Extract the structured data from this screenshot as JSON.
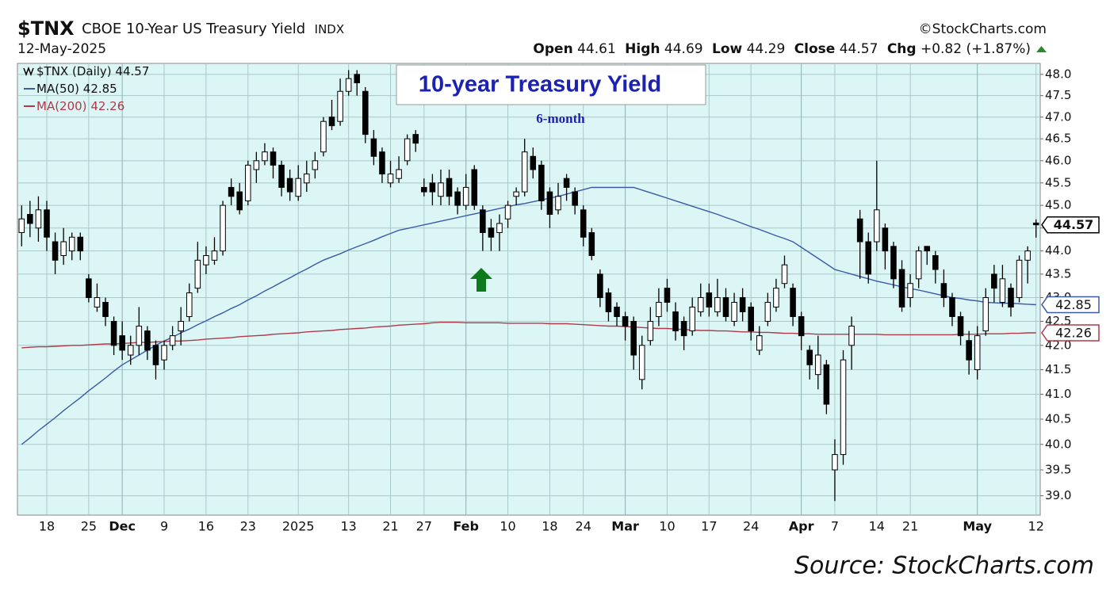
{
  "chart_data": {
    "type": "candlestick",
    "header": {
      "symbol": "$TNX",
      "name": "CBOE 10-Year US Treasury Yield",
      "exchange": "INDX",
      "date": "12-May-2025",
      "copyright": "©StockCharts.com",
      "open_label": "Open",
      "high_label": "High",
      "low_label": "Low",
      "close_label": "Close",
      "chg_label": "Chg",
      "change": "+0.82",
      "change_pct": "(+1.87%)"
    },
    "title": "10-year Treasury Yield",
    "subtitle": "6-month",
    "source": "Source: StockCharts.com",
    "log": true,
    "grid": true,
    "legend": "top-left",
    "ylim": [
      38.63,
      48.26
    ],
    "yticks": [
      {
        "value": 39.0,
        "label": "39.0"
      },
      39.5,
      {
        "value": 40.0,
        "label": "40.0"
      },
      40.5,
      {
        "value": 41.0,
        "label": "41.0"
      },
      41.5,
      {
        "value": 42.0,
        "label": "42.0"
      },
      42.5,
      {
        "value": 43.0,
        "label": "43.0"
      },
      43.5,
      {
        "value": 44.0,
        "label": "44.0"
      },
      44.5,
      {
        "value": 45.0,
        "label": "45.0"
      },
      45.5,
      {
        "value": 46.0,
        "label": "46.0"
      },
      46.5,
      {
        "value": 47.0,
        "label": "47.0"
      },
      47.5,
      {
        "value": 48.0,
        "label": "48.0"
      }
    ],
    "categories": [
      null,
      null,
      null,
      "18",
      null,
      null,
      null,
      null,
      "25",
      null,
      null,
      null,
      "Dec",
      null,
      null,
      null,
      null,
      "9",
      null,
      null,
      null,
      null,
      "16",
      null,
      null,
      null,
      null,
      "23",
      null,
      null,
      null,
      null,
      null,
      "2025",
      null,
      null,
      null,
      null,
      null,
      "13",
      null,
      null,
      null,
      null,
      "21",
      null,
      null,
      null,
      "27",
      null,
      null,
      null,
      null,
      "Feb",
      null,
      null,
      null,
      null,
      "10",
      null,
      null,
      null,
      null,
      "18",
      null,
      null,
      null,
      "24",
      null,
      null,
      null,
      null,
      "Mar",
      null,
      null,
      null,
      null,
      "10",
      null,
      null,
      null,
      null,
      "17",
      null,
      null,
      null,
      null,
      "24",
      null,
      null,
      null,
      null,
      null,
      "Apr",
      null,
      null,
      null,
      "7",
      null,
      null,
      null,
      null,
      "14",
      null,
      null,
      null,
      "21",
      null,
      null,
      null,
      null,
      null,
      null,
      null,
      "May",
      null,
      null,
      null,
      null,
      null,
      null,
      "12"
    ],
    "series": [
      {
        "name": "$TNX (Daily)",
        "color": "#000000",
        "open": [
          44.4,
          44.8,
          44.5,
          44.9,
          44.2,
          43.9,
          44.0,
          44.3,
          43.4,
          42.8,
          42.9,
          42.5,
          42.2,
          41.8,
          42.0,
          42.3,
          42.0,
          41.7,
          42.0,
          42.3,
          42.6,
          43.2,
          43.7,
          43.8,
          44.0,
          45.4,
          45.3,
          45.1,
          45.8,
          46.0,
          46.2,
          45.9,
          45.6,
          45.2,
          45.5,
          45.8,
          46.2,
          47.0,
          46.9,
          47.6,
          48.0,
          47.6,
          46.5,
          46.2,
          45.5,
          45.6,
          46.0,
          46.6,
          45.4,
          45.5,
          45.2,
          45.6,
          45.3,
          45.0,
          45.8,
          44.9,
          44.5,
          44.4,
          44.7,
          45.2,
          45.3,
          46.1,
          45.9,
          45.3,
          44.9,
          45.6,
          45.3,
          44.9,
          44.4,
          43.5,
          43.1,
          42.8,
          42.6,
          42.5,
          41.3,
          42.1,
          42.6,
          43.2,
          42.7,
          42.5,
          42.3,
          42.7,
          43.1,
          42.7,
          43.0,
          42.5,
          43.0,
          42.8,
          41.9,
          42.5,
          42.8,
          43.3,
          43.2,
          42.6,
          41.9,
          41.4,
          41.6,
          39.5,
          39.8,
          42.0,
          44.7,
          44.2,
          44.2,
          44.5,
          44.1,
          43.6,
          43.0,
          43.4,
          44.1,
          43.9,
          43.3,
          43.0,
          42.6,
          42.1,
          41.5,
          42.3,
          43.5,
          42.9,
          43.2,
          43.0,
          43.8,
          44.61
        ],
        "high": [
          45.0,
          45.1,
          45.2,
          45.1,
          44.4,
          44.5,
          44.4,
          44.4,
          43.5,
          43.3,
          43.0,
          42.6,
          42.5,
          42.2,
          42.8,
          42.4,
          42.1,
          42.1,
          42.4,
          42.8,
          43.3,
          44.2,
          44.1,
          44.3,
          45.1,
          45.6,
          45.5,
          46.0,
          46.2,
          46.4,
          46.3,
          46.0,
          45.8,
          45.9,
          46.0,
          46.2,
          47.0,
          47.4,
          47.9,
          48.1,
          48.1,
          47.7,
          46.7,
          46.3,
          46.0,
          46.1,
          46.6,
          46.7,
          45.6,
          45.7,
          45.8,
          45.8,
          45.4,
          45.7,
          45.9,
          45.0,
          44.7,
          44.8,
          45.1,
          45.4,
          46.5,
          46.3,
          46.0,
          45.4,
          45.5,
          45.7,
          45.4,
          45.0,
          44.5,
          43.6,
          43.2,
          42.9,
          42.7,
          42.6,
          42.2,
          42.8,
          43.2,
          43.4,
          42.9,
          42.6,
          43.0,
          43.3,
          43.3,
          43.4,
          43.2,
          43.1,
          43.2,
          42.9,
          42.4,
          43.1,
          43.4,
          43.9,
          43.3,
          42.7,
          42.0,
          42.2,
          41.7,
          40.1,
          41.9,
          42.6,
          44.9,
          44.4,
          46.0,
          44.6,
          44.2,
          43.8,
          43.5,
          44.1,
          44.1,
          44.0,
          43.6,
          43.1,
          42.7,
          42.3,
          42.4,
          43.2,
          43.7,
          43.7,
          43.3,
          43.9,
          44.1,
          44.69
        ],
        "low": [
          44.1,
          44.3,
          44.2,
          44.0,
          43.5,
          43.7,
          43.8,
          43.8,
          42.9,
          42.7,
          42.4,
          41.8,
          41.7,
          41.6,
          41.8,
          41.7,
          41.3,
          41.5,
          41.9,
          42.0,
          42.5,
          43.1,
          43.5,
          43.7,
          43.9,
          45.0,
          44.8,
          45.0,
          45.5,
          45.9,
          45.6,
          45.2,
          45.1,
          45.1,
          45.3,
          45.6,
          46.1,
          46.7,
          46.8,
          47.5,
          47.5,
          46.4,
          45.9,
          45.5,
          45.4,
          45.5,
          45.9,
          46.2,
          45.2,
          45.0,
          45.0,
          45.0,
          44.8,
          44.9,
          44.9,
          44.0,
          44.0,
          44.0,
          44.5,
          45.0,
          45.2,
          45.6,
          44.9,
          44.5,
          44.8,
          45.1,
          44.8,
          44.1,
          43.8,
          42.8,
          42.5,
          42.4,
          42.1,
          41.5,
          41.1,
          42.0,
          42.4,
          42.7,
          42.1,
          41.9,
          42.2,
          42.6,
          42.6,
          42.6,
          42.5,
          42.4,
          42.5,
          42.1,
          41.8,
          42.4,
          42.7,
          43.2,
          42.4,
          41.9,
          41.3,
          41.1,
          40.6,
          38.9,
          39.6,
          41.5,
          43.4,
          43.3,
          44.0,
          43.6,
          43.2,
          42.7,
          42.8,
          43.2,
          43.7,
          43.3,
          42.8,
          42.4,
          42.0,
          41.4,
          41.3,
          42.2,
          42.9,
          42.8,
          42.6,
          42.9,
          43.3,
          44.29
        ],
        "close": [
          44.7,
          44.6,
          44.9,
          44.3,
          43.8,
          44.2,
          44.3,
          44.0,
          43.0,
          43.0,
          42.6,
          42.0,
          41.9,
          42.0,
          42.4,
          41.9,
          41.6,
          42.0,
          42.2,
          42.5,
          43.1,
          43.8,
          43.9,
          44.0,
          45.0,
          45.2,
          44.9,
          45.9,
          46.0,
          46.2,
          45.9,
          45.4,
          45.3,
          45.6,
          45.7,
          46.0,
          46.9,
          46.8,
          47.6,
          47.9,
          47.8,
          46.6,
          46.1,
          45.7,
          45.7,
          45.8,
          46.5,
          46.4,
          45.3,
          45.3,
          45.5,
          45.2,
          45.0,
          45.4,
          45.0,
          44.4,
          44.3,
          44.6,
          45.0,
          45.3,
          46.2,
          45.8,
          45.1,
          44.8,
          45.2,
          45.4,
          45.0,
          44.3,
          43.9,
          43.0,
          42.7,
          42.6,
          42.4,
          41.8,
          42.0,
          42.5,
          42.9,
          42.9,
          42.3,
          42.2,
          42.8,
          43.0,
          42.8,
          43.0,
          42.6,
          42.9,
          42.7,
          42.3,
          42.2,
          42.9,
          43.2,
          43.7,
          42.6,
          42.2,
          41.6,
          41.8,
          40.8,
          39.8,
          41.7,
          42.4,
          44.2,
          43.5,
          44.9,
          44.0,
          43.4,
          42.8,
          43.3,
          44.0,
          44.0,
          43.6,
          43.0,
          42.6,
          42.2,
          41.7,
          42.2,
          43.0,
          43.2,
          43.4,
          42.8,
          43.8,
          44.0,
          44.57
        ]
      },
      {
        "name": "MA(50)",
        "color": "#3a5aa8",
        "values": [
          40.0,
          40.13,
          40.27,
          40.4,
          40.53,
          40.67,
          40.8,
          40.93,
          41.07,
          41.2,
          41.33,
          41.47,
          41.6,
          41.7,
          41.8,
          41.9,
          42.0,
          42.09,
          42.17,
          42.26,
          42.34,
          42.43,
          42.51,
          42.6,
          42.68,
          42.77,
          42.85,
          42.95,
          43.04,
          43.14,
          43.23,
          43.33,
          43.42,
          43.52,
          43.61,
          43.71,
          43.8,
          43.87,
          43.94,
          44.02,
          44.09,
          44.16,
          44.23,
          44.31,
          44.38,
          44.45,
          44.49,
          44.53,
          44.57,
          44.61,
          44.65,
          44.69,
          44.73,
          44.77,
          44.81,
          44.85,
          44.89,
          44.93,
          44.97,
          45.01,
          45.04,
          45.08,
          45.12,
          45.16,
          45.2,
          45.25,
          45.3,
          45.35,
          45.4,
          45.4,
          45.4,
          45.4,
          45.4,
          45.4,
          45.34,
          45.28,
          45.22,
          45.16,
          45.1,
          45.04,
          44.98,
          44.92,
          44.86,
          44.8,
          44.73,
          44.67,
          44.6,
          44.53,
          44.47,
          44.4,
          44.33,
          44.27,
          44.2,
          44.08,
          43.96,
          43.84,
          43.72,
          43.6,
          43.55,
          43.5,
          43.45,
          43.4,
          43.35,
          43.31,
          43.27,
          43.23,
          43.19,
          43.16,
          43.12,
          43.08,
          43.04,
          43.0,
          42.98,
          42.95,
          42.93,
          42.9,
          42.89,
          42.88,
          42.88,
          42.87,
          42.86,
          42.85
        ]
      },
      {
        "name": "MA(200)",
        "color": "#b03a4a",
        "values": [
          41.95,
          41.96,
          41.97,
          41.97,
          41.98,
          41.99,
          42.0,
          42.0,
          42.01,
          42.02,
          42.03,
          42.03,
          42.04,
          42.05,
          42.06,
          42.06,
          42.07,
          42.08,
          42.09,
          42.09,
          42.1,
          42.11,
          42.13,
          42.14,
          42.15,
          42.16,
          42.18,
          42.19,
          42.2,
          42.21,
          42.23,
          42.24,
          42.25,
          42.26,
          42.28,
          42.29,
          42.3,
          42.31,
          42.33,
          42.34,
          42.35,
          42.36,
          42.38,
          42.39,
          42.4,
          42.42,
          42.43,
          42.44,
          42.45,
          42.47,
          42.48,
          42.48,
          42.48,
          42.47,
          42.47,
          42.47,
          42.47,
          42.47,
          42.46,
          42.46,
          42.46,
          42.46,
          42.46,
          42.45,
          42.45,
          42.45,
          42.44,
          42.43,
          42.42,
          42.41,
          42.4,
          42.4,
          42.39,
          42.38,
          42.37,
          42.36,
          42.35,
          42.35,
          42.34,
          42.33,
          42.32,
          42.31,
          42.31,
          42.3,
          42.3,
          42.29,
          42.28,
          42.28,
          42.27,
          42.27,
          42.26,
          42.25,
          42.25,
          42.24,
          42.24,
          42.23,
          42.23,
          42.23,
          42.23,
          42.23,
          42.23,
          42.23,
          42.23,
          42.22,
          42.22,
          42.22,
          42.22,
          42.22,
          42.22,
          42.22,
          42.22,
          42.22,
          42.23,
          42.23,
          42.23,
          42.24,
          42.24,
          42.24,
          42.25,
          42.25,
          42.26,
          42.26
        ]
      }
    ]
  }
}
